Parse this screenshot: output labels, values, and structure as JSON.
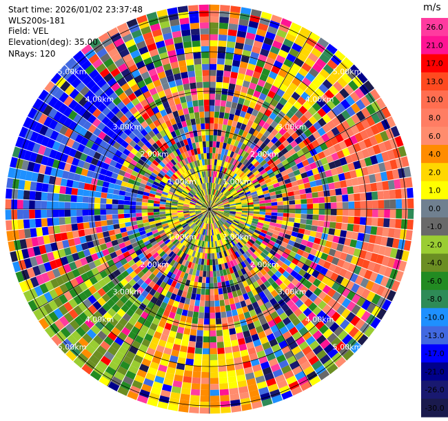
{
  "info": {
    "start_time": "Start time: 2026/01/02 23:37:48",
    "instrument": "WLS200s-181",
    "field": "Field: VEL",
    "elevation": "Elevation(deg): 35.00",
    "nrays": "NRays: 120"
  },
  "chart_data": {
    "type": "heatmap",
    "projection": "polar",
    "title": "",
    "field": "VEL",
    "elevation_deg": 35.0,
    "n_rays": 120,
    "range_rings_km": [
      1,
      2,
      3,
      4,
      5
    ],
    "range_ring_labels": [
      "1.00km",
      "2.00km",
      "3.00km",
      "4.00km",
      "5.00km"
    ],
    "max_range_km": 5.2,
    "colorbar": {
      "unit": "m/s",
      "ticks": [
        "26.0",
        "21.0",
        "17.0",
        "13.0",
        "10.0",
        "8.0",
        "6.0",
        "4.0",
        "2.0",
        "1.0",
        "0.0",
        "-1.0",
        "-2.0",
        "-4.0",
        "-6.0",
        "-8.0",
        "-10.0",
        "-13.0",
        "-17.0",
        "-21.0",
        "-26.0",
        "-30.0"
      ],
      "colors": [
        "#ff3b9f",
        "#ff1493",
        "#ff0000",
        "#ff4a1f",
        "#ff6e50",
        "#ff7d63",
        "#ff8c6e",
        "#ff8c00",
        "#ffd700",
        "#ffff00",
        "#708090",
        "#696969",
        "#9acd32",
        "#6b8e23",
        "#228b22",
        "#2e8b57",
        "#1e90ff",
        "#4169e1",
        "#0000ff",
        "#00008b",
        "#191970",
        "#1a1a4d"
      ],
      "range": [
        -30,
        30
      ]
    }
  }
}
